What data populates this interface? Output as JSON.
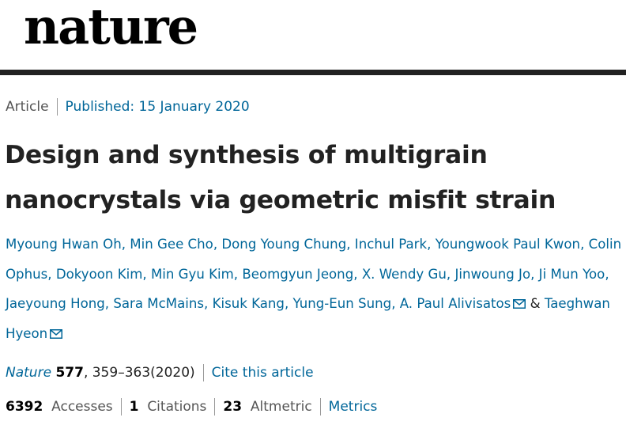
{
  "brand": {
    "logo_text": "nature"
  },
  "article_meta": {
    "type": "Article",
    "published_label": "Published: 15 January 2020"
  },
  "title": "Design and synthesis of multigrain nanocrystals via geometric misfit strain",
  "authors": [
    "Myoung Hwan Oh",
    "Min Gee Cho",
    "Dong Young Chung",
    "Inchul Park",
    "Youngwook Paul Kwon",
    "Colin Ophus",
    "Dokyoon Kim",
    "Min Gyu Kim",
    "Beomgyun Jeong",
    "X. Wendy Gu",
    "Jinwoung Jo",
    "Ji Mun Yoo",
    "Jaeyoung Hong",
    "Sara McMains",
    "Kisuk Kang",
    "Yung-Eun Sung",
    "A. Paul Alivisatos",
    "Taeghwan Hyeon"
  ],
  "author_separator": "&",
  "citation": {
    "journal": "Nature",
    "volume": "577",
    "pages": ", 359–363(2020)",
    "cite_label": "Cite this article"
  },
  "metrics": {
    "accesses_count": "6392",
    "accesses_label": "Accesses",
    "citations_count": "1",
    "citations_label": "Citations",
    "altmetric_count": "23",
    "altmetric_label": "Altmetric",
    "metrics_link": "Metrics"
  },
  "colors": {
    "link": "#006699",
    "rule": "#222222"
  },
  "icons": {
    "email": "envelope-icon"
  }
}
